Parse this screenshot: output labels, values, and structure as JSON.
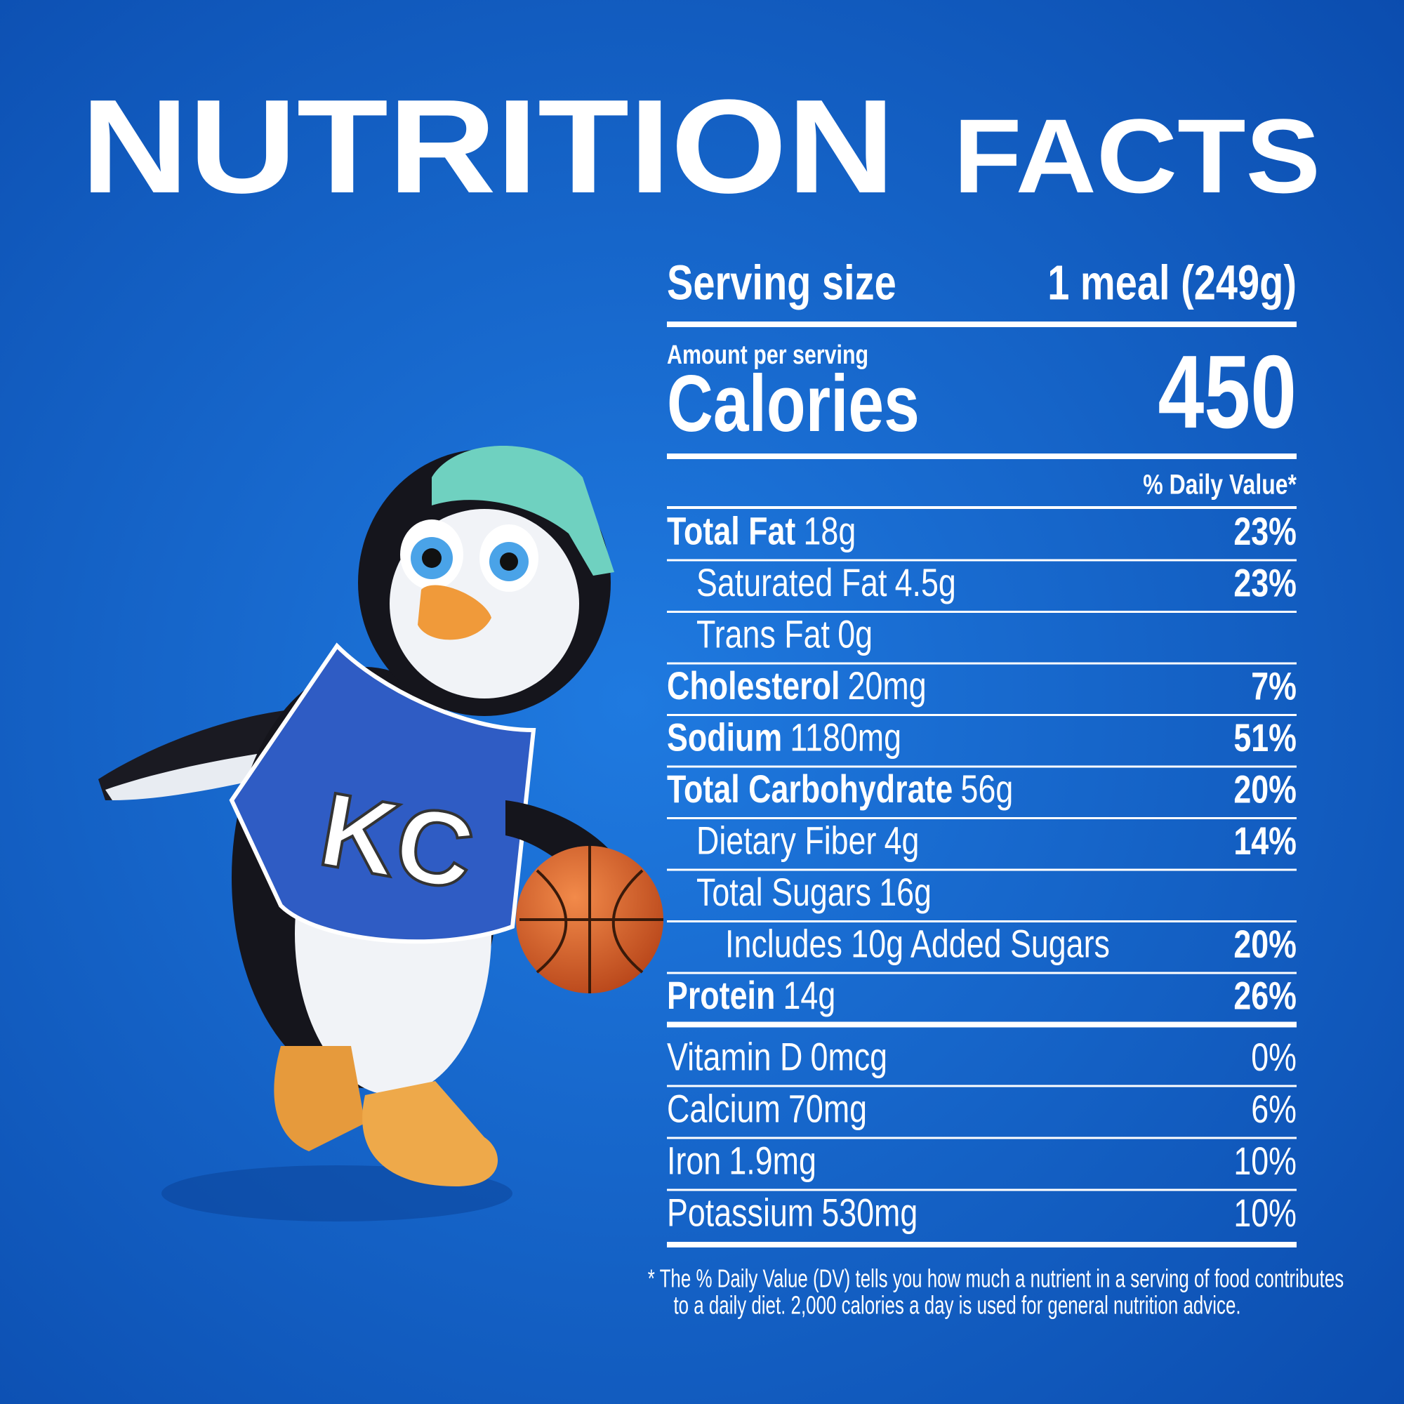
{
  "header": {
    "title_main": "NUTRITION",
    "title_sub": "FACTS"
  },
  "label": {
    "serving_size_label": "Serving size",
    "serving_size": "1 meal (249g)",
    "amount_per_serving": "Amount per serving",
    "calories_label": "Calories",
    "calories": 450,
    "daily_value_header": "% Daily Value*",
    "nutrients": [
      {
        "name": "Total Fat",
        "amount": "18g",
        "dv": "23%",
        "sub": [
          {
            "name": "Saturated Fat",
            "amount": "4.5g",
            "dv": "23%"
          },
          {
            "name": "Trans Fat",
            "amount": "0g"
          }
        ]
      },
      {
        "name": "Cholesterol",
        "amount": "20mg",
        "dv": "7%"
      },
      {
        "name": "Sodium",
        "amount": "1180mg",
        "dv": "51%"
      },
      {
        "name": "Total Carbohydrate",
        "amount": "56g",
        "dv": "20%",
        "sub": [
          {
            "name": "Dietary Fiber",
            "amount": "4g",
            "dv": "14%"
          },
          {
            "name": "Total Sugars",
            "amount": "16g",
            "sub": [
              {
                "name": "Includes 10g Added Sugars",
                "dv": "20%"
              }
            ]
          }
        ]
      },
      {
        "name": "Protein",
        "amount": "14g",
        "dv": "26%"
      }
    ],
    "vitamins": [
      {
        "name": "Vitamin D",
        "amount": "0mcg",
        "dv": "0%"
      },
      {
        "name": "Calcium",
        "amount": "70mg",
        "dv": "6%"
      },
      {
        "name": "Iron",
        "amount": "1.9mg",
        "dv": "10%"
      },
      {
        "name": "Potassium",
        "amount": "530mg",
        "dv": "10%"
      }
    ],
    "footnote": [
      "* The % Daily Value (DV) tells you how much a nutrient in a serving of food contributes",
      "to a daily diet. 2,000 calories a day is used for general nutrition advice."
    ]
  }
}
